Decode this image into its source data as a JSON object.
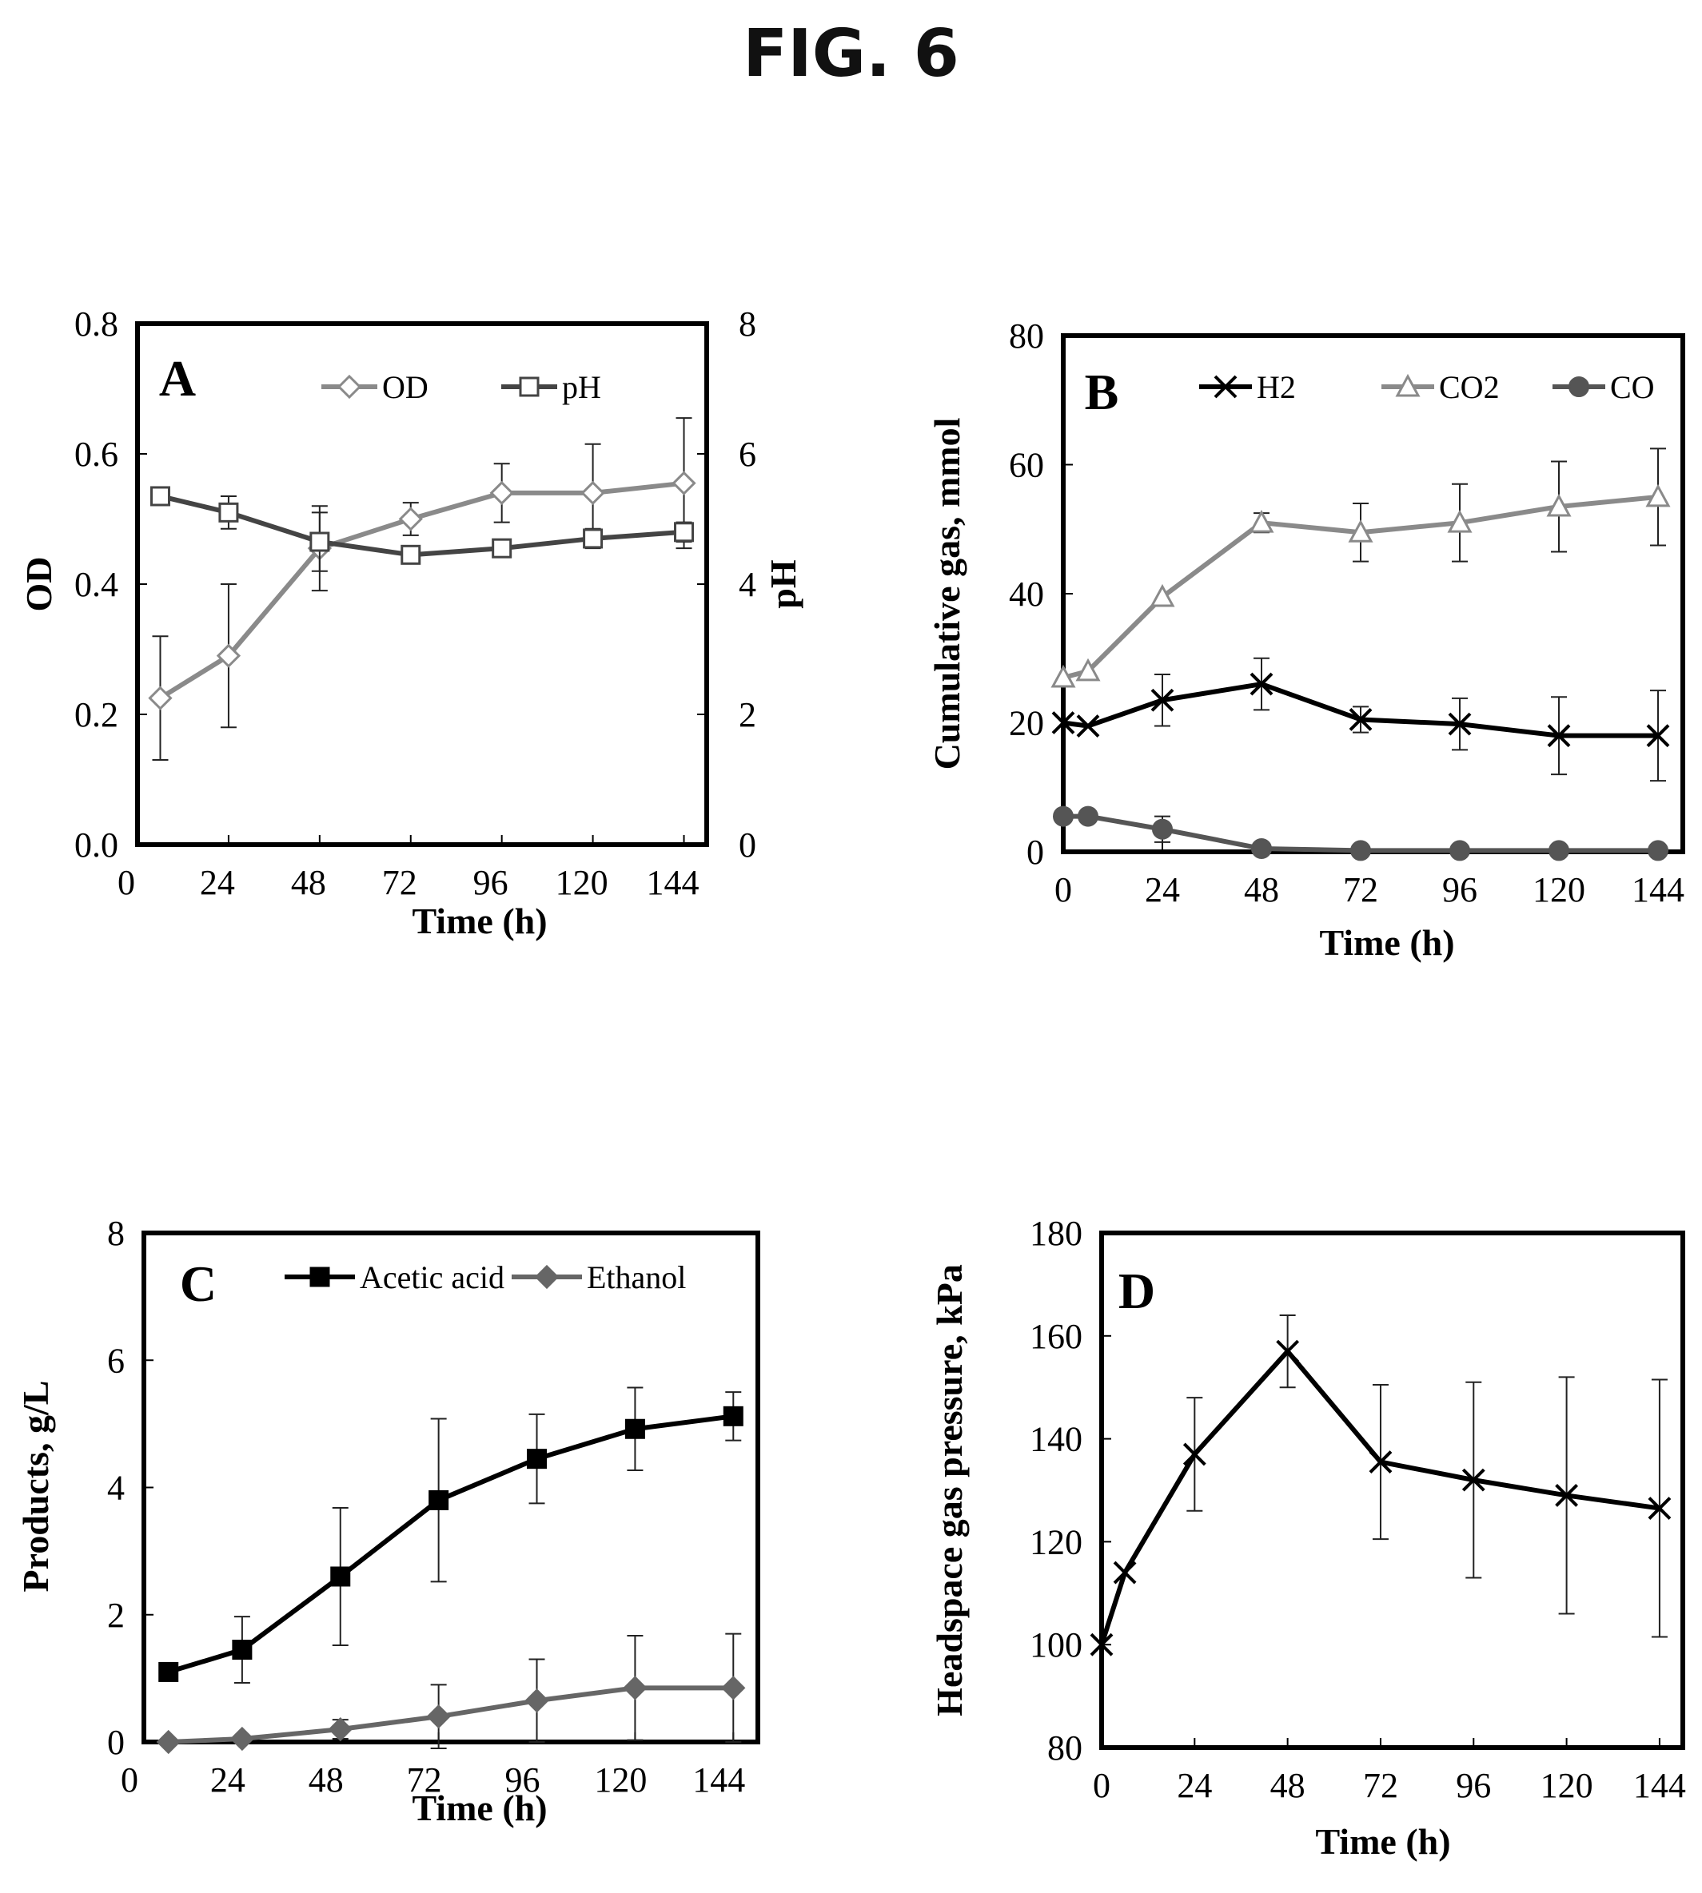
{
  "figure_title": "FIG. 6",
  "chart_data": [
    {
      "panel": "A",
      "type": "line",
      "xlabel": "Time (h)",
      "ylabel": "OD",
      "y2label": "pH",
      "xlim": [
        0,
        150
      ],
      "ylim": [
        0,
        0.8
      ],
      "y2lim": [
        0,
        8
      ],
      "x_ticks": [
        0,
        24,
        48,
        72,
        96,
        120,
        144
      ],
      "y_ticks": [
        0.0,
        0.2,
        0.4,
        0.6,
        0.8
      ],
      "y_tick_labels": [
        "0.0",
        "0.2",
        "0.4",
        "0.6",
        "0.8"
      ],
      "y2_ticks": [
        0,
        2,
        4,
        6,
        8
      ],
      "y2_tick_labels": [
        "0",
        "2",
        "4",
        "6",
        "8"
      ],
      "grid": false,
      "legend": "top-right",
      "series": [
        {
          "name": "OD",
          "axis": "left",
          "color": "#8a8a8a",
          "marker": "diamond-open",
          "x": [
            6,
            24,
            48,
            72,
            96,
            120,
            144
          ],
          "y": [
            0.225,
            0.29,
            0.455,
            0.5,
            0.54,
            0.54,
            0.555
          ],
          "err": [
            0.095,
            0.11,
            0.065,
            0.025,
            0.045,
            0.075,
            0.1
          ]
        },
        {
          "name": "pH",
          "axis": "right",
          "color": "#444444",
          "marker": "square-open",
          "x": [
            6,
            24,
            48,
            72,
            96,
            120,
            144
          ],
          "y": [
            5.35,
            5.1,
            4.65,
            4.45,
            4.55,
            4.7,
            4.8
          ],
          "err": [
            0.05,
            0.25,
            0.45,
            0.08,
            0.1,
            0.15,
            0.15
          ]
        }
      ]
    },
    {
      "panel": "B",
      "type": "line",
      "xlabel": "Time (h)",
      "ylabel": "Cumulative gas, mmol",
      "xlim": [
        0,
        150
      ],
      "ylim": [
        0,
        80
      ],
      "x_ticks": [
        0,
        24,
        48,
        72,
        96,
        120,
        144
      ],
      "y_ticks": [
        0,
        20,
        40,
        60,
        80
      ],
      "y_tick_labels": [
        "0",
        "20",
        "40",
        "60",
        "80"
      ],
      "grid": false,
      "legend": "top",
      "series": [
        {
          "name": "H2",
          "color": "#000000",
          "marker": "x",
          "x": [
            0,
            6,
            24,
            48,
            72,
            96,
            120,
            144
          ],
          "y": [
            20,
            19.5,
            23.5,
            26,
            20.5,
            19.8,
            18,
            18
          ],
          "err": [
            0,
            0,
            4,
            4,
            2,
            4,
            6,
            7
          ]
        },
        {
          "name": "CO2",
          "color": "#8a8a8a",
          "marker": "triangle-open",
          "x": [
            0,
            6,
            24,
            48,
            72,
            96,
            120,
            144
          ],
          "y": [
            27,
            28,
            39.5,
            51,
            49.5,
            51,
            53.5,
            55
          ],
          "err": [
            0,
            0,
            0,
            1.5,
            4.5,
            6,
            7,
            7.5
          ]
        },
        {
          "name": "CO",
          "color": "#555555",
          "marker": "circle-filled",
          "x": [
            0,
            6,
            24,
            48,
            72,
            96,
            120,
            144
          ],
          "y": [
            5.5,
            5.5,
            3.5,
            0.5,
            0.2,
            0.2,
            0.2,
            0.2
          ],
          "err": [
            0,
            0,
            2,
            0,
            0,
            0,
            0,
            0
          ]
        }
      ]
    },
    {
      "panel": "C",
      "type": "line",
      "xlabel": "Time (h)",
      "ylabel": "Products,  g/L",
      "xlim": [
        0,
        150
      ],
      "ylim": [
        0,
        8
      ],
      "x_ticks": [
        0,
        24,
        48,
        72,
        96,
        120,
        144
      ],
      "y_ticks": [
        0,
        2,
        4,
        6,
        8
      ],
      "y_tick_labels": [
        "0",
        "2",
        "4",
        "6",
        "8"
      ],
      "grid": false,
      "legend": "top",
      "series": [
        {
          "name": "Acetic acid",
          "color": "#000000",
          "marker": "square-filled",
          "x": [
            6,
            24,
            48,
            72,
            96,
            120,
            144
          ],
          "y": [
            1.1,
            1.45,
            2.6,
            3.8,
            4.45,
            4.92,
            5.12
          ],
          "err": [
            0,
            0.52,
            1.08,
            1.28,
            0.7,
            0.65,
            0.38
          ]
        },
        {
          "name": "Ethanol",
          "color": "#666666",
          "marker": "diamond-filled",
          "x": [
            6,
            24,
            48,
            72,
            96,
            120,
            144
          ],
          "y": [
            0,
            0.05,
            0.2,
            0.4,
            0.65,
            0.85,
            0.85
          ],
          "err": [
            0,
            0,
            0.15,
            0.5,
            0.65,
            0.82,
            0.85
          ]
        }
      ]
    },
    {
      "panel": "D",
      "type": "line",
      "xlabel": "Time (h)",
      "ylabel": "Headspace gas pressure,  kPa",
      "xlim": [
        0,
        150
      ],
      "ylim": [
        80,
        180
      ],
      "x_ticks": [
        0,
        24,
        48,
        72,
        96,
        120,
        144
      ],
      "y_ticks": [
        80,
        100,
        120,
        140,
        160,
        180
      ],
      "y_tick_labels": [
        "80",
        "100",
        "120",
        "140",
        "160",
        "180"
      ],
      "grid": false,
      "series": [
        {
          "color": "#000000",
          "marker": "x",
          "x": [
            0,
            6,
            24,
            48,
            72,
            96,
            120,
            144
          ],
          "y": [
            100,
            114,
            137,
            157,
            135.5,
            132,
            129,
            126.5
          ],
          "err": [
            0,
            0,
            11,
            7,
            15,
            19,
            23,
            25
          ]
        }
      ]
    }
  ]
}
